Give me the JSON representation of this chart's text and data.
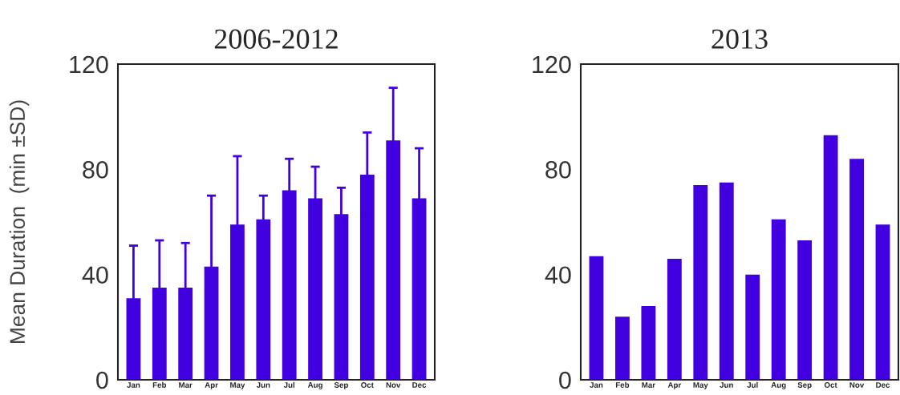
{
  "chart_data": [
    {
      "type": "bar",
      "title": "2006-2012",
      "ylabel": "Mean Duration  (min ±SD)",
      "categories": [
        "Jan",
        "Feb",
        "Mar",
        "Apr",
        "May",
        "Jun",
        "Jul",
        "Aug",
        "Sep",
        "Oct",
        "Nov",
        "Dec"
      ],
      "values": [
        31,
        35,
        35,
        43,
        59,
        61,
        72,
        69,
        63,
        78,
        91,
        69
      ],
      "errors": [
        20,
        18,
        17,
        27,
        26,
        9,
        12,
        12,
        10,
        16,
        20,
        19
      ],
      "color": "#4000e0",
      "ylim": [
        0,
        120
      ],
      "yticks": [
        0,
        40,
        80,
        120
      ],
      "grid": false
    },
    {
      "type": "bar",
      "title": "2013",
      "categories": [
        "Jan",
        "Feb",
        "Mar",
        "Apr",
        "May",
        "Jun",
        "Jul",
        "Aug",
        "Sep",
        "Oct",
        "Nov",
        "Dec"
      ],
      "values": [
        47,
        24,
        28,
        46,
        74,
        75,
        40,
        61,
        53,
        93,
        84,
        59
      ],
      "color": "#4000e0",
      "ylim": [
        0,
        120
      ],
      "yticks": [
        0,
        40,
        80,
        120
      ],
      "grid": false
    }
  ]
}
